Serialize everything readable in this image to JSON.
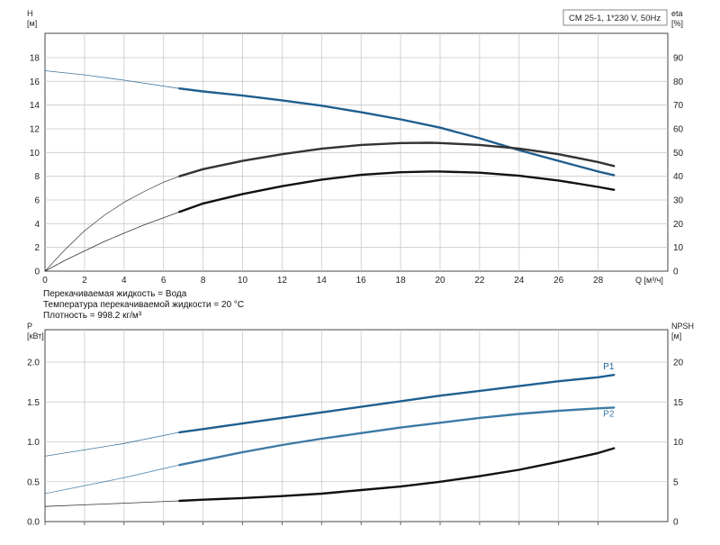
{
  "legend_box": "CM 25-1, 1*230 V, 50Hz",
  "notes": [
    "Перекачиваемая жидкость = Вода",
    "Температура перекачиваемой жидкости = 20 °C",
    "Плотность = 998.2 кг/м³"
  ],
  "colors": {
    "grid": "#c9c9c9",
    "axis": "#444444",
    "head": "#1f5f8f",
    "eta": "#333333",
    "p1": "#1f5f8f",
    "p2": "#3d7aa5",
    "npsh": "#111111"
  },
  "chart_data": [
    {
      "type": "line",
      "title": "",
      "xlabel": "Q [м³/ч]",
      "ylabel_left": "H\n[м]",
      "ylabel_right": "eta\n[%]",
      "xlim": [
        0,
        30
      ],
      "ylim_left": [
        0,
        20
      ],
      "ylim_right": [
        0,
        100
      ],
      "xticks": [
        0,
        2,
        4,
        6,
        8,
        10,
        12,
        14,
        16,
        18,
        20,
        22,
        24,
        26,
        28
      ],
      "yticks_left": [
        0,
        2,
        4,
        6,
        8,
        10,
        12,
        14,
        16,
        18
      ],
      "yticks_right": [
        0,
        10,
        20,
        30,
        40,
        50,
        60,
        70,
        80,
        90
      ],
      "grid": true,
      "series": [
        {
          "key": "head",
          "axis": "left",
          "color": "#1f5f8f",
          "x": [
            0,
            2,
            4,
            6.8,
            8,
            10,
            12,
            14,
            16,
            18,
            20,
            22,
            24,
            26,
            28,
            28.8
          ],
          "y": [
            16.9,
            16.55,
            16.1,
            15.4,
            15.15,
            14.8,
            14.4,
            13.95,
            13.4,
            12.8,
            12.1,
            11.2,
            10.2,
            9.3,
            8.4,
            8.1
          ],
          "thin_until": 6.8
        },
        {
          "key": "eta_upper",
          "axis": "right",
          "color": "#333333",
          "x": [
            0,
            1,
            2,
            3,
            4,
            5,
            6,
            6.8,
            8,
            10,
            12,
            14,
            16,
            18,
            19.5,
            20,
            22,
            24,
            26,
            28,
            28.8
          ],
          "y": [
            0,
            9,
            17,
            23.5,
            29,
            33.5,
            37.5,
            40,
            43,
            46.5,
            49.3,
            51.6,
            53.2,
            54,
            54.1,
            54,
            53.2,
            51.7,
            49.3,
            46,
            44.3
          ],
          "thin_until": 6.8
        },
        {
          "key": "eta_lower",
          "axis": "right",
          "color": "#111111",
          "x": [
            0,
            1,
            2,
            3,
            4,
            5,
            6,
            6.8,
            8,
            10,
            12,
            14,
            16,
            18,
            19.5,
            20,
            22,
            24,
            26,
            28,
            28.8
          ],
          "y": [
            0,
            4.5,
            8.5,
            12.5,
            16,
            19.5,
            22.5,
            25,
            28.5,
            32.5,
            35.8,
            38.6,
            40.6,
            41.7,
            42,
            42,
            41.5,
            40.2,
            38.2,
            35.5,
            34.3
          ],
          "thin_until": 6.8
        }
      ]
    },
    {
      "type": "line",
      "title": "",
      "xlabel": "",
      "ylabel_left": "P\n[кВт]",
      "ylabel_right": "NPSH\n[м]",
      "xlim": [
        0,
        30
      ],
      "ylim_left": [
        0,
        2.5
      ],
      "ylim_right": [
        0,
        25
      ],
      "xticks": [
        0,
        2,
        4,
        6,
        8,
        10,
        12,
        14,
        16,
        18,
        20,
        22,
        24,
        26,
        28
      ],
      "yticks_left": [
        0.0,
        0.5,
        1.0,
        1.5,
        2.0
      ],
      "yticks_right": [
        0,
        5,
        10,
        15,
        20
      ],
      "grid": true,
      "series": [
        {
          "key": "p1",
          "name": "P1",
          "axis": "left",
          "color": "#1f5f8f",
          "x": [
            0,
            2,
            4,
            6.8,
            8,
            10,
            12,
            14,
            16,
            18,
            20,
            22,
            24,
            26,
            28,
            28.8
          ],
          "y": [
            0.82,
            0.9,
            0.98,
            1.12,
            1.16,
            1.23,
            1.3,
            1.37,
            1.44,
            1.51,
            1.58,
            1.64,
            1.7,
            1.76,
            1.81,
            1.84
          ],
          "thin_until": 6.8
        },
        {
          "key": "p2",
          "name": "P2",
          "axis": "left",
          "color": "#3d7aa5",
          "x": [
            0,
            2,
            4,
            6.8,
            8,
            10,
            12,
            14,
            16,
            18,
            20,
            22,
            24,
            26,
            28,
            28.8
          ],
          "y": [
            0.35,
            0.45,
            0.55,
            0.71,
            0.77,
            0.87,
            0.96,
            1.04,
            1.11,
            1.18,
            1.24,
            1.3,
            1.35,
            1.39,
            1.42,
            1.43
          ],
          "thin_until": 6.8
        },
        {
          "key": "npsh",
          "axis": "right",
          "color": "#111111",
          "x": [
            0,
            2,
            4,
            6.8,
            8,
            10,
            12,
            14,
            16,
            18,
            20,
            22,
            24,
            26,
            28,
            28.8
          ],
          "y": [
            1.9,
            2.1,
            2.3,
            2.6,
            2.75,
            2.95,
            3.2,
            3.5,
            3.95,
            4.4,
            5.0,
            5.7,
            6.5,
            7.5,
            8.6,
            9.2
          ],
          "thin_until": 6.8
        }
      ]
    }
  ]
}
